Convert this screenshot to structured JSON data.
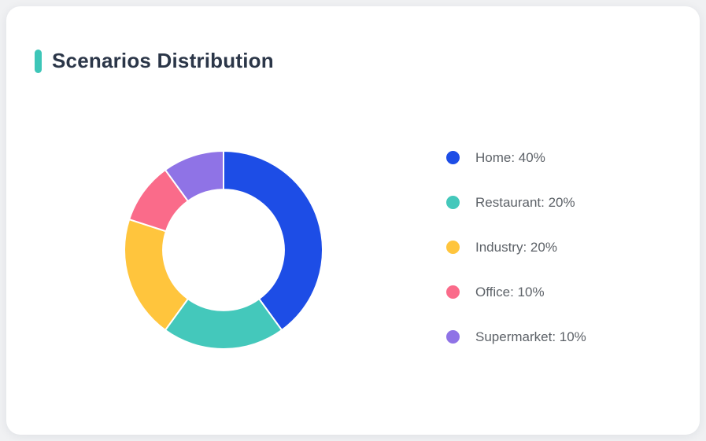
{
  "page": {
    "background_color": "#F0F1F3",
    "card_background_color": "#FFFFFF"
  },
  "card": {
    "title": "Scenarios Distribution",
    "accent_color": "#3DC6B8",
    "title_color": "#2B3648"
  },
  "chart_data": {
    "type": "pie",
    "title": "Scenarios Distribution",
    "donut": true,
    "start_angle_deg": 0,
    "direction": "clockwise",
    "inner_radius_ratio": 0.61,
    "slice_border_color": "#FFFFFF",
    "slice_border_width": 2,
    "legend_position": "right",
    "legend_format": "{name}: {value}%",
    "unit": "%",
    "series": [
      {
        "name": "Home",
        "value": 40,
        "color": "#1D4DE6"
      },
      {
        "name": "Restaurant",
        "value": 20,
        "color": "#44C8BB"
      },
      {
        "name": "Industry",
        "value": 20,
        "color": "#FFC53D"
      },
      {
        "name": "Office",
        "value": 10,
        "color": "#FA6B8A"
      },
      {
        "name": "Supermarket",
        "value": 10,
        "color": "#8F73E6"
      }
    ]
  }
}
